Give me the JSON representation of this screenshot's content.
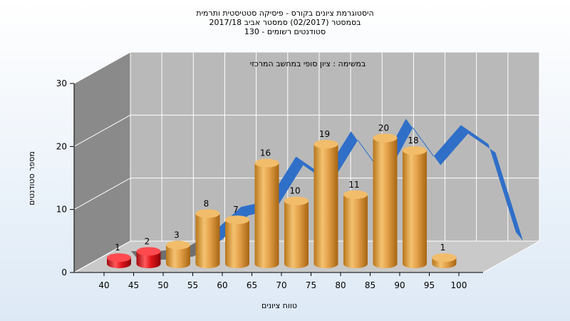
{
  "chart_data": {
    "type": "bar",
    "title_lines": [
      "היסטוגרמת ציונים בקורס - פיסיקה סטטיסטית ותרמית",
      "בסמסטר  (02/2017)  סמסטר אביב 2017/18",
      "סטודנטים רשומים - 130"
    ],
    "subtitle": "במשימה : ציון סופי במחשב המרכזי",
    "xlabel": "טווח ציונים",
    "ylabel": "מספר סטודנטים",
    "ylim": [
      0,
      30
    ],
    "yticks": [
      0,
      10,
      20,
      30
    ],
    "xticks": [
      "40",
      "45",
      "50",
      "55",
      "60",
      "65",
      "70",
      "75",
      "80",
      "85",
      "90",
      "95",
      "100"
    ],
    "values": [
      1,
      2,
      3,
      8,
      7,
      16,
      10,
      19,
      11,
      20,
      18,
      1
    ],
    "bar_colors": [
      "#e0141a",
      "#e0141a",
      "#e8a040",
      "#e8a040",
      "#e8a040",
      "#e8a040",
      "#e8a040",
      "#e8a040",
      "#e8a040",
      "#e8a040",
      "#e8a040",
      "#e8a040"
    ],
    "curve_series": [
      0,
      0,
      0.5,
      3,
      7,
      8,
      15,
      12,
      19,
      13,
      21,
      15,
      20,
      17,
      3
    ]
  },
  "colors": {
    "background": "#eaf2fb",
    "plot_back": "#b9b9b9",
    "left_wall": "#8a8a8a",
    "floor": "#c9c9c9",
    "curve": "#2f6fc8",
    "curve_back": "#6f6f6f"
  }
}
